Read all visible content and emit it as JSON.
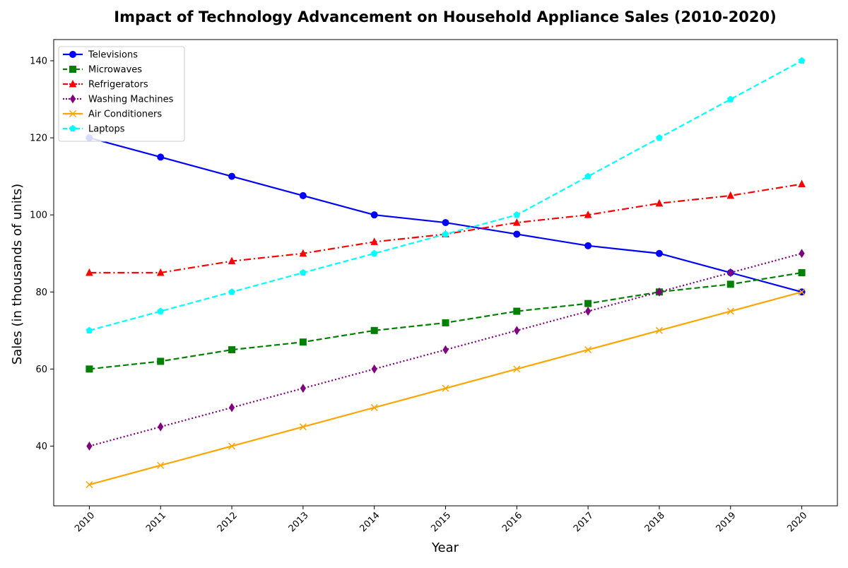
{
  "chart_data": {
    "type": "line",
    "title": "Impact of Technology Advancement on Household Appliance Sales (2010-2020)",
    "xlabel": "Year",
    "ylabel": "Sales (in thousands of units)",
    "x": [
      2010,
      2011,
      2012,
      2013,
      2014,
      2015,
      2016,
      2017,
      2018,
      2019,
      2020
    ],
    "x_tick_labels": [
      "2010",
      "2011",
      "2012",
      "2013",
      "2014",
      "2015",
      "2016",
      "2017",
      "2018",
      "2019",
      "2020"
    ],
    "y_ticks": [
      40,
      60,
      80,
      100,
      120,
      140
    ],
    "y_tick_labels": [
      "40",
      "60",
      "80",
      "100",
      "120",
      "140"
    ],
    "xlim": [
      2009.5,
      2020.5
    ],
    "ylim": [
      24.5,
      145.5
    ],
    "grid": false,
    "legend_position": "top-left",
    "series": [
      {
        "name": "Televisions",
        "color": "#0000ff",
        "marker": "circle",
        "line_style": "solid",
        "values": [
          120,
          115,
          110,
          105,
          100,
          98,
          95,
          92,
          90,
          85,
          80
        ]
      },
      {
        "name": "Microwaves",
        "color": "#008000",
        "marker": "square",
        "line_style": "dashed",
        "values": [
          60,
          62,
          65,
          67,
          70,
          72,
          75,
          77,
          80,
          82,
          85
        ]
      },
      {
        "name": "Refrigerators",
        "color": "#ff0000",
        "marker": "triangle",
        "line_style": "dashdot",
        "values": [
          85,
          85,
          88,
          90,
          93,
          95,
          98,
          100,
          103,
          105,
          108
        ]
      },
      {
        "name": "Washing Machines",
        "color": "#800080",
        "marker": "diamond",
        "line_style": "dotted",
        "values": [
          40,
          45,
          50,
          55,
          60,
          65,
          70,
          75,
          80,
          85,
          90
        ]
      },
      {
        "name": "Air Conditioners",
        "color": "#ffa500",
        "marker": "x",
        "line_style": "solid",
        "values": [
          30,
          35,
          40,
          45,
          50,
          55,
          60,
          65,
          70,
          75,
          80
        ]
      },
      {
        "name": "Laptops",
        "color": "#00ffff",
        "marker": "pentagon",
        "line_style": "dashed",
        "values": [
          70,
          75,
          80,
          85,
          90,
          95,
          100,
          110,
          120,
          130,
          140
        ]
      }
    ]
  }
}
